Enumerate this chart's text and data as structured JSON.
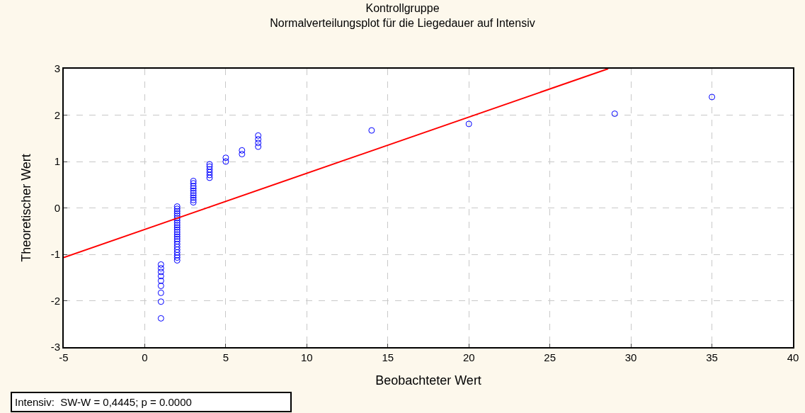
{
  "chart_data": {
    "type": "scatter",
    "title": "Kontrollgruppe",
    "subtitle": "Normalverteilungsplot für die Liegedauer auf Intensiv",
    "xlabel": "Beobachteter Wert",
    "ylabel": "Theoretischer Wert",
    "annotations": [
      "Intensiv:  SW-W = 0,4445; p = 0.0000"
    ],
    "xlim": [
      -5,
      40
    ],
    "xticks": [
      -5,
      0,
      5,
      10,
      15,
      20,
      25,
      30,
      35,
      40
    ],
    "ylim": [
      -3,
      3
    ],
    "yticks": [
      -3,
      -2,
      -1,
      0,
      1,
      2,
      3
    ],
    "grid": true,
    "marker": "circle",
    "series": [
      {
        "color": "#0000ff",
        "x": [
          1,
          1,
          1,
          1,
          1,
          1,
          1,
          1,
          1,
          2,
          2,
          2,
          2,
          2,
          2,
          2,
          2,
          2,
          2,
          2,
          2,
          2,
          2,
          2,
          2,
          2,
          2,
          2,
          2,
          2,
          2,
          2,
          3,
          3,
          3,
          3,
          3,
          3,
          3,
          3,
          3,
          3,
          4,
          4,
          4,
          4,
          4,
          4,
          5,
          5,
          6,
          6,
          7,
          7,
          7,
          7,
          14,
          20,
          29,
          35
        ],
        "values": [
          -2.38,
          -2.02,
          -1.83,
          -1.68,
          -1.57,
          -1.47,
          -1.38,
          -1.3,
          -1.22,
          0.03,
          -0.02,
          -0.07,
          -0.12,
          -0.17,
          -0.22,
          -0.27,
          -0.32,
          -0.37,
          -0.42,
          -0.47,
          -0.52,
          -0.57,
          -0.62,
          -0.67,
          -0.72,
          -0.78,
          -0.84,
          -0.9,
          -0.96,
          -1.02,
          -1.07,
          -1.13,
          0.12,
          0.17,
          0.22,
          0.27,
          0.32,
          0.37,
          0.42,
          0.47,
          0.53,
          0.58,
          0.65,
          0.71,
          0.77,
          0.83,
          0.89,
          0.94,
          1.0,
          1.08,
          1.16,
          1.24,
          1.32,
          1.4,
          1.48,
          1.56,
          1.67,
          1.81,
          2.03,
          2.39
        ]
      },
      {
        "type": "line",
        "color": "#ff0000",
        "marker": "none",
        "line_style": "solid",
        "x": [
          -5,
          28.6
        ],
        "values": [
          -1.07,
          3.0
        ]
      }
    ]
  }
}
